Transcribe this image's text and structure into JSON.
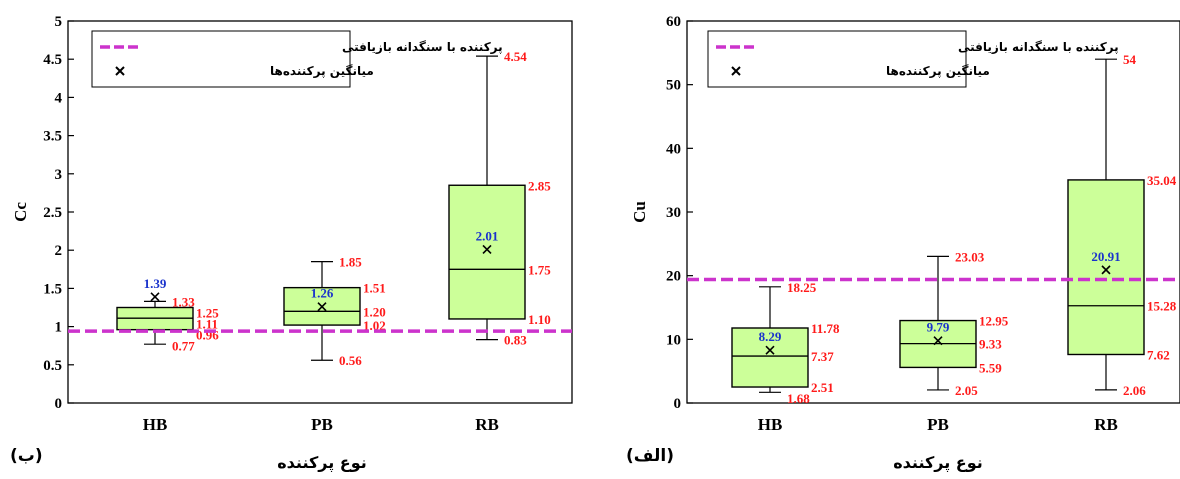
{
  "colors": {
    "box_fill": "#ccff99",
    "box_stroke": "#000000",
    "reference_line": "#cc33cc",
    "annotation": "#ff1a1a",
    "mean_label": "#1a33cc"
  },
  "x_axis_title": "نوع پرکننده",
  "legend": {
    "reference": "پرکننده با سنگدانه بازیافتی",
    "mean": "میانگین پرکننده‌ها"
  },
  "chart_data": [
    {
      "type": "box",
      "panel_label": "(ب)",
      "ylabel": "Cc",
      "ylim": [
        0,
        5
      ],
      "yticks": [
        0,
        0.5,
        1,
        1.5,
        2,
        2.5,
        3,
        3.5,
        4,
        4.5,
        5
      ],
      "ytick_labels": [
        "0",
        "0.5",
        "1",
        "1.5",
        "2",
        "2.5",
        "3",
        "3.5",
        "4",
        "4.5",
        "5"
      ],
      "reference_value": 0.94,
      "legend_position": "top-left",
      "categories": [
        "HB",
        "PB",
        "RB"
      ],
      "boxes": [
        {
          "category": "HB",
          "min": 0.77,
          "q1": 0.96,
          "median": 1.11,
          "q3": 1.25,
          "max": 1.33,
          "mean": 1.39,
          "labels": {
            "min": "0.77",
            "q1": "0.96",
            "median": "1.11",
            "q3": "1.25",
            "max": "1.33",
            "mean": "1.39"
          }
        },
        {
          "category": "PB",
          "min": 0.56,
          "q1": 1.02,
          "median": 1.2,
          "q3": 1.51,
          "max": 1.85,
          "mean": 1.26,
          "labels": {
            "min": "0.56",
            "q1": "1.02",
            "median": "1.20",
            "q3": "1.51",
            "max": "1.85",
            "mean": "1.26"
          }
        },
        {
          "category": "RB",
          "min": 0.83,
          "q1": 1.1,
          "median": 1.75,
          "q3": 2.85,
          "max": 4.54,
          "mean": 2.01,
          "labels": {
            "min": "0.83",
            "q1": "1.10",
            "median": "1.75",
            "q3": "2.85",
            "max": "4.54",
            "mean": "2.01"
          }
        }
      ]
    },
    {
      "type": "box",
      "panel_label": "(الف)",
      "ylabel": "Cu",
      "ylim": [
        0,
        60
      ],
      "yticks": [
        0,
        10,
        20,
        30,
        40,
        50,
        60
      ],
      "ytick_labels": [
        "0",
        "10",
        "20",
        "30",
        "40",
        "50",
        "60"
      ],
      "reference_value": 19.4,
      "legend_position": "top-left",
      "categories": [
        "HB",
        "PB",
        "RB"
      ],
      "boxes": [
        {
          "category": "HB",
          "min": 1.68,
          "q1": 2.51,
          "median": 7.37,
          "q3": 11.78,
          "max": 18.25,
          "mean": 8.29,
          "labels": {
            "min": "1.68",
            "q1": "2.51",
            "median": "7.37",
            "q3": "11.78",
            "max": "18.25",
            "mean": "8.29"
          }
        },
        {
          "category": "PB",
          "min": 2.05,
          "q1": 5.59,
          "median": 9.33,
          "q3": 12.95,
          "max": 23.03,
          "mean": 9.79,
          "labels": {
            "min": "2.05",
            "q1": "5.59",
            "median": "9.33",
            "q3": "12.95",
            "max": "23.03",
            "mean": "9.79"
          }
        },
        {
          "category": "RB",
          "min": 2.06,
          "q1": 7.62,
          "median": 15.28,
          "q3": 35.04,
          "max": 54,
          "mean": 20.91,
          "labels": {
            "min": "2.06",
            "q1": "7.62",
            "median": "15.28",
            "q3": "35.04",
            "max": "54",
            "mean": "20.91"
          }
        }
      ]
    }
  ]
}
